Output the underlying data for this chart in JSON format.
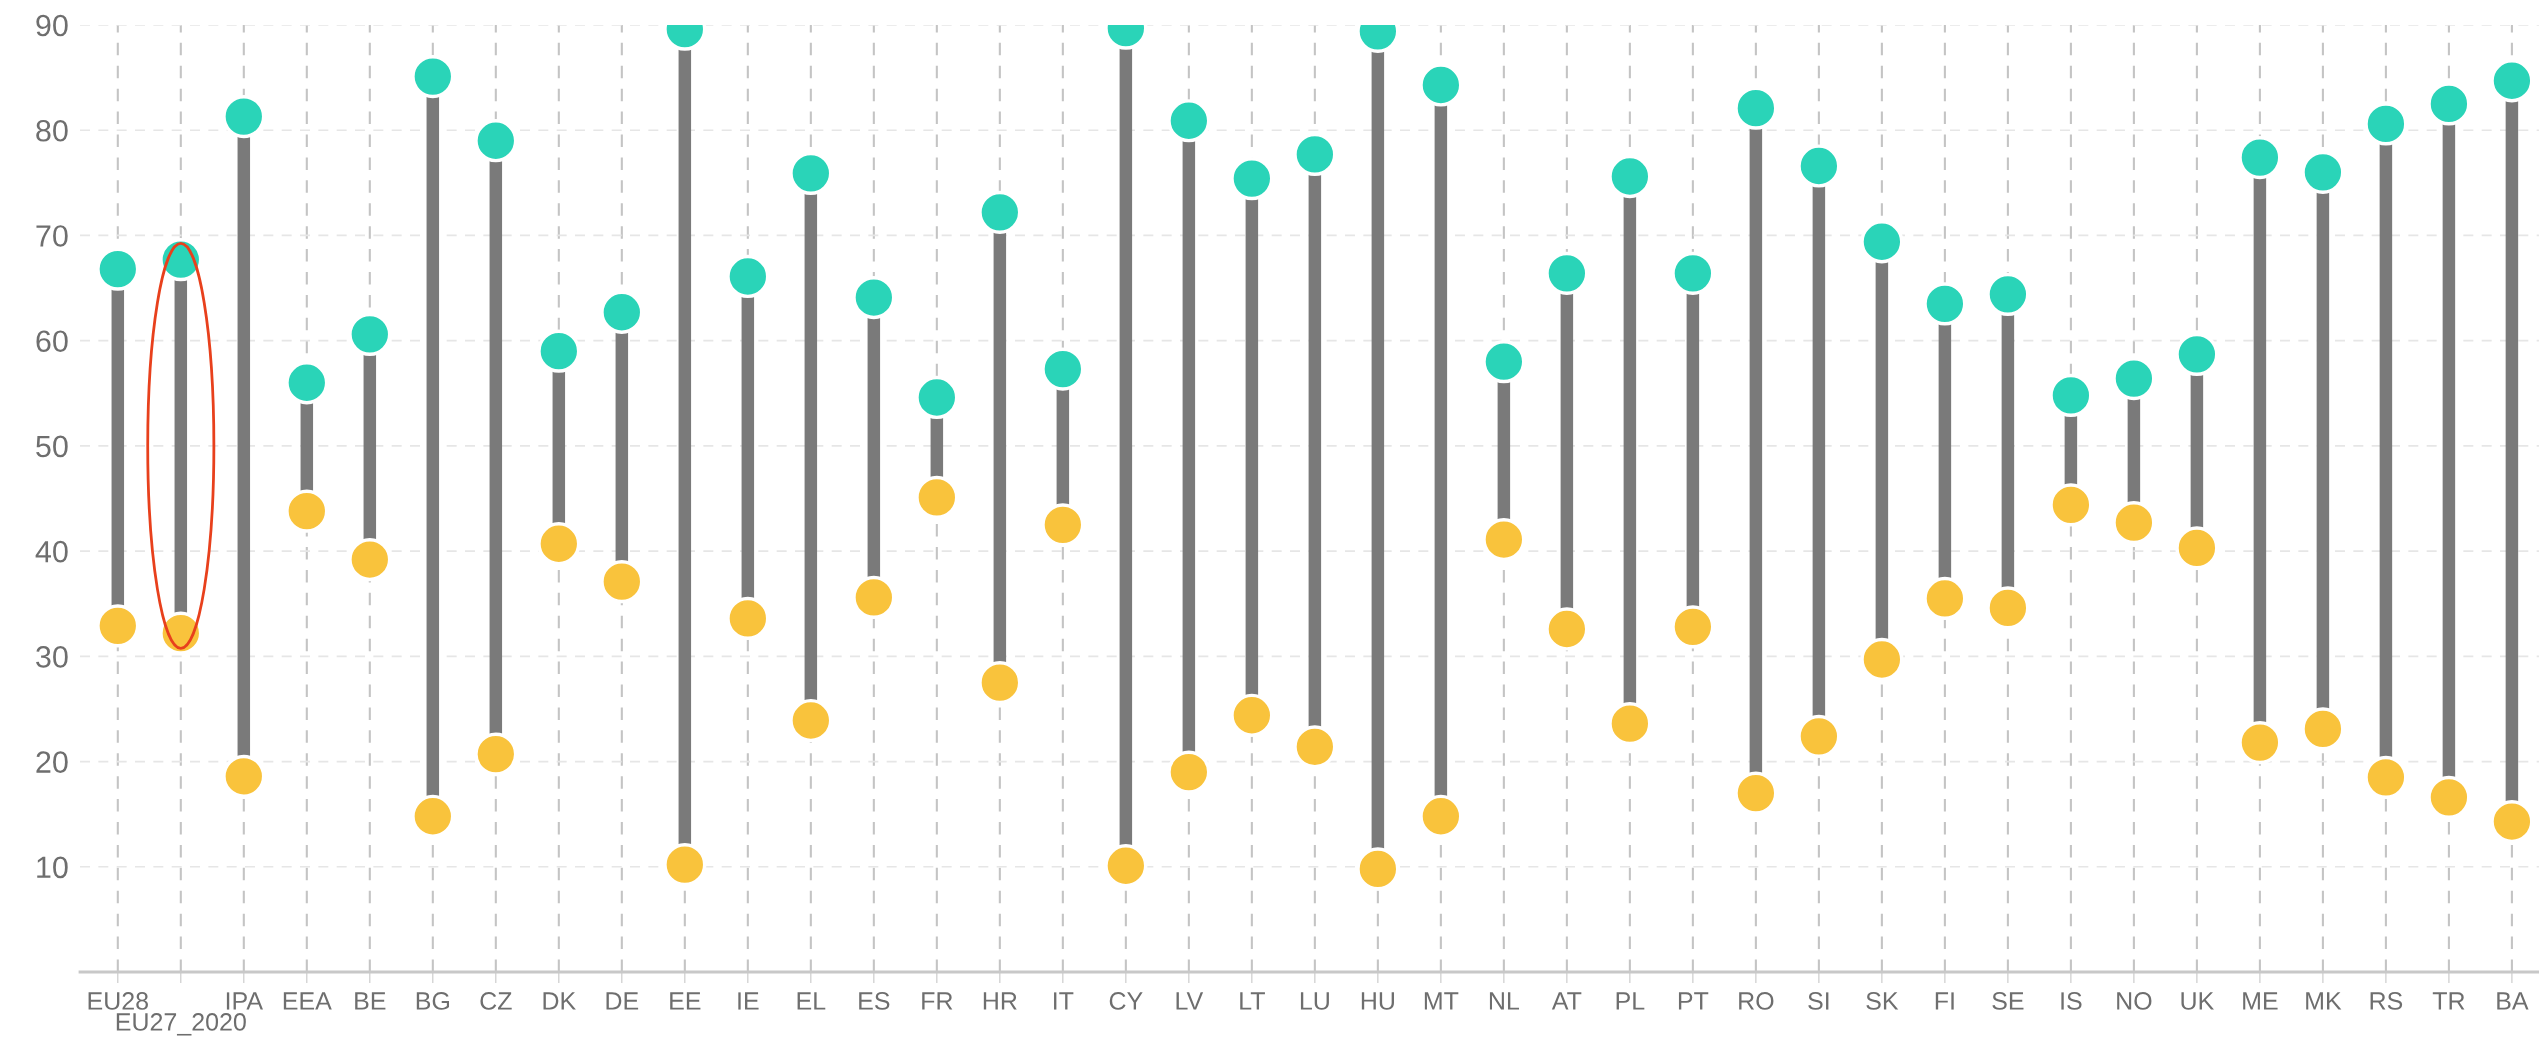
{
  "chart_data": {
    "type": "scatter",
    "categories": [
      "EU28",
      "EU27_2020",
      "IPA",
      "EEA",
      "BE",
      "BG",
      "CZ",
      "DK",
      "DE",
      "EE",
      "IE",
      "EL",
      "ES",
      "FR",
      "HR",
      "IT",
      "CY",
      "LV",
      "LT",
      "LU",
      "HU",
      "MT",
      "NL",
      "AT",
      "PL",
      "PT",
      "RO",
      "SI",
      "SK",
      "FI",
      "SE",
      "IS",
      "NO",
      "UK",
      "ME",
      "MK",
      "RS",
      "TR",
      "BA"
    ],
    "series": [
      {
        "color": "#f9c33c",
        "values": [
          32.9,
          32.2,
          18.6,
          43.8,
          39.2,
          14.8,
          20.7,
          40.7,
          37.1,
          10.2,
          33.6,
          23.9,
          35.6,
          45.1,
          27.5,
          42.5,
          10.1,
          19.0,
          24.4,
          21.4,
          9.8,
          14.8,
          41.1,
          32.6,
          23.6,
          32.8,
          17.0,
          22.4,
          29.7,
          35.5,
          34.6,
          44.4,
          42.7,
          40.3,
          21.8,
          23.1,
          18.5,
          16.6,
          14.3
        ]
      },
      {
        "color": "#2ad4b8",
        "values": [
          66.8,
          67.7,
          81.3,
          56.0,
          60.6,
          85.1,
          79.0,
          59.0,
          62.7,
          89.6,
          66.1,
          75.9,
          64.1,
          54.6,
          72.2,
          57.3,
          89.7,
          80.9,
          75.4,
          77.7,
          89.4,
          84.3,
          58.0,
          66.4,
          75.6,
          66.4,
          82.1,
          76.6,
          69.4,
          63.5,
          64.4,
          54.8,
          56.4,
          58.7,
          77.4,
          76.0,
          80.6,
          82.5,
          84.7
        ]
      }
    ],
    "marker": "circle",
    "ylim": [
      0,
      90
    ],
    "yticks": [
      10,
      20,
      30,
      40,
      50,
      60,
      70,
      80,
      90
    ],
    "grid": true
  }
}
